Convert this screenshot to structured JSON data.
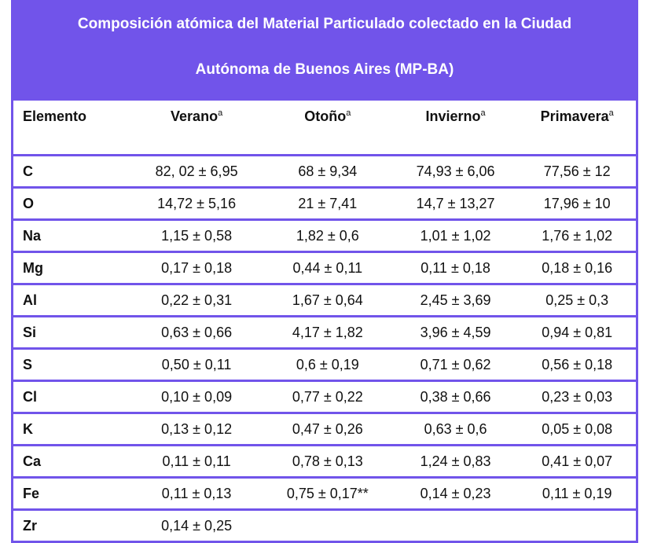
{
  "title": {
    "line1": "Composición atómica del Material Particulado colectado en la Ciudad",
    "line2": "Autónoma de Buenos Aires (MP-BA)"
  },
  "headers": [
    "Elemento",
    "Verano",
    "Otoño",
    "Invierno",
    "Primavera"
  ],
  "superscript": "a",
  "rows": [
    [
      "C",
      "82, 02 ± 6,95",
      "68 ± 9,34",
      "74,93 ± 6,06",
      "77,56 ± 12"
    ],
    [
      "O",
      "14,72 ± 5,16",
      "21 ± 7,41",
      "14,7 ± 13,27",
      "17,96 ± 10"
    ],
    [
      "Na",
      "1,15 ± 0,58",
      "1,82 ± 0,6",
      "1,01 ± 1,02",
      "1,76 ± 1,02"
    ],
    [
      "Mg",
      "0,17 ± 0,18",
      "0,44 ± 0,11",
      "0,11 ± 0,18",
      "0,18 ± 0,16"
    ],
    [
      "Al",
      "0,22 ± 0,31",
      "1,67 ± 0,64",
      "2,45 ± 3,69",
      "0,25 ± 0,3"
    ],
    [
      "Si",
      "0,63 ± 0,66",
      "4,17 ± 1,82",
      "3,96 ± 4,59",
      "0,94 ± 0,81"
    ],
    [
      "S",
      "0,50 ± 0,11",
      "0,6 ± 0,19",
      "0,71 ± 0,62",
      "0,56 ± 0,18"
    ],
    [
      "Cl",
      "0,10 ± 0,09",
      "0,77 ± 0,22",
      "0,38 ± 0,66",
      "0,23 ± 0,03"
    ],
    [
      "K",
      "0,13 ± 0,12",
      "0,47 ± 0,26",
      "0,63 ± 0,6",
      "0,05 ± 0,08"
    ],
    [
      "Ca",
      "0,11 ± 0,11",
      "0,78 ± 0,13",
      "1,24 ± 0,83",
      "0,41 ± 0,07"
    ],
    [
      "Fe",
      "0,11 ± 0,13",
      "0,75 ± 0,17**",
      "0,14 ± 0,23",
      "0,11 ± 0,19"
    ],
    [
      "Zr",
      "0,14 ± 0,25",
      "",
      "",
      ""
    ]
  ],
  "colors": {
    "accent": "#7154ea"
  }
}
